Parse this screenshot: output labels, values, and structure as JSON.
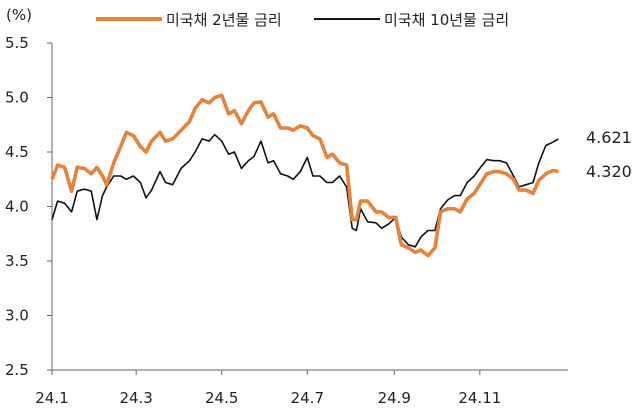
{
  "chart_data": {
    "type": "line",
    "unit_label": "(%)",
    "x_ticks": [
      "24.1",
      "24.3",
      "24.5",
      "24.7",
      "24.9",
      "24.11"
    ],
    "y_ticks": [
      "5.5",
      "5.0",
      "4.5",
      "4.0",
      "3.5",
      "3.0",
      "2.5"
    ],
    "ylim": [
      2.5,
      5.5
    ],
    "xlim": [
      "2024-01-01",
      "2024-12-31"
    ],
    "grid": false,
    "legend_position": "top",
    "series": [
      {
        "name": "미국채 2년물 금리",
        "color": "#e6823a",
        "end_label": "4.320",
        "points": [
          [
            "2024-01-01",
            4.25
          ],
          [
            "2024-01-05",
            4.38
          ],
          [
            "2024-01-10",
            4.36
          ],
          [
            "2024-01-15",
            4.14
          ],
          [
            "2024-01-19",
            4.36
          ],
          [
            "2024-01-24",
            4.35
          ],
          [
            "2024-01-29",
            4.3
          ],
          [
            "2024-02-02",
            4.36
          ],
          [
            "2024-02-06",
            4.28
          ],
          [
            "2024-02-09",
            4.2
          ],
          [
            "2024-02-14",
            4.4
          ],
          [
            "2024-02-19",
            4.55
          ],
          [
            "2024-02-23",
            4.68
          ],
          [
            "2024-02-28",
            4.65
          ],
          [
            "2024-03-04",
            4.55
          ],
          [
            "2024-03-08",
            4.5
          ],
          [
            "2024-03-12",
            4.6
          ],
          [
            "2024-03-18",
            4.68
          ],
          [
            "2024-03-22",
            4.6
          ],
          [
            "2024-03-27",
            4.62
          ],
          [
            "2024-04-02",
            4.7
          ],
          [
            "2024-04-08",
            4.78
          ],
          [
            "2024-04-12",
            4.9
          ],
          [
            "2024-04-17",
            4.98
          ],
          [
            "2024-04-22",
            4.95
          ],
          [
            "2024-04-26",
            5.0
          ],
          [
            "2024-05-01",
            5.02
          ],
          [
            "2024-05-06",
            4.85
          ],
          [
            "2024-05-10",
            4.88
          ],
          [
            "2024-05-15",
            4.76
          ],
          [
            "2024-05-20",
            4.88
          ],
          [
            "2024-05-24",
            4.95
          ],
          [
            "2024-05-29",
            4.96
          ],
          [
            "2024-06-03",
            4.82
          ],
          [
            "2024-06-07",
            4.85
          ],
          [
            "2024-06-12",
            4.72
          ],
          [
            "2024-06-17",
            4.72
          ],
          [
            "2024-06-21",
            4.7
          ],
          [
            "2024-06-26",
            4.74
          ],
          [
            "2024-07-01",
            4.72
          ],
          [
            "2024-07-05",
            4.65
          ],
          [
            "2024-07-10",
            4.62
          ],
          [
            "2024-07-15",
            4.45
          ],
          [
            "2024-07-19",
            4.48
          ],
          [
            "2024-07-24",
            4.4
          ],
          [
            "2024-07-29",
            4.38
          ],
          [
            "2024-08-02",
            3.88
          ],
          [
            "2024-08-05",
            3.88
          ],
          [
            "2024-08-08",
            4.05
          ],
          [
            "2024-08-13",
            4.05
          ],
          [
            "2024-08-19",
            3.95
          ],
          [
            "2024-08-23",
            3.95
          ],
          [
            "2024-08-28",
            3.9
          ],
          [
            "2024-09-02",
            3.9
          ],
          [
            "2024-09-06",
            3.65
          ],
          [
            "2024-09-11",
            3.62
          ],
          [
            "2024-09-16",
            3.58
          ],
          [
            "2024-09-20",
            3.6
          ],
          [
            "2024-09-25",
            3.55
          ],
          [
            "2024-09-30",
            3.62
          ],
          [
            "2024-10-04",
            3.95
          ],
          [
            "2024-10-09",
            3.98
          ],
          [
            "2024-10-14",
            3.98
          ],
          [
            "2024-10-18",
            3.95
          ],
          [
            "2024-10-23",
            4.07
          ],
          [
            "2024-10-28",
            4.12
          ],
          [
            "2024-11-01",
            4.2
          ],
          [
            "2024-11-06",
            4.3
          ],
          [
            "2024-11-11",
            4.32
          ],
          [
            "2024-11-15",
            4.32
          ],
          [
            "2024-11-20",
            4.3
          ],
          [
            "2024-11-25",
            4.25
          ],
          [
            "2024-11-29",
            4.15
          ],
          [
            "2024-12-04",
            4.15
          ],
          [
            "2024-12-09",
            4.12
          ],
          [
            "2024-12-13",
            4.24
          ],
          [
            "2024-12-18",
            4.3
          ],
          [
            "2024-12-23",
            4.33
          ],
          [
            "2024-12-27",
            4.32
          ]
        ]
      },
      {
        "name": "미국채 10년물 금리",
        "color": "#111111",
        "end_label": "4.621",
        "points": [
          [
            "2024-01-01",
            3.88
          ],
          [
            "2024-01-05",
            4.05
          ],
          [
            "2024-01-10",
            4.03
          ],
          [
            "2024-01-15",
            3.95
          ],
          [
            "2024-01-19",
            4.14
          ],
          [
            "2024-01-24",
            4.16
          ],
          [
            "2024-01-29",
            4.14
          ],
          [
            "2024-02-02",
            3.88
          ],
          [
            "2024-02-06",
            4.1
          ],
          [
            "2024-02-09",
            4.18
          ],
          [
            "2024-02-14",
            4.28
          ],
          [
            "2024-02-19",
            4.28
          ],
          [
            "2024-02-23",
            4.25
          ],
          [
            "2024-02-28",
            4.28
          ],
          [
            "2024-03-04",
            4.22
          ],
          [
            "2024-03-08",
            4.08
          ],
          [
            "2024-03-12",
            4.15
          ],
          [
            "2024-03-18",
            4.32
          ],
          [
            "2024-03-22",
            4.22
          ],
          [
            "2024-03-27",
            4.2
          ],
          [
            "2024-04-02",
            4.35
          ],
          [
            "2024-04-08",
            4.42
          ],
          [
            "2024-04-12",
            4.5
          ],
          [
            "2024-04-17",
            4.62
          ],
          [
            "2024-04-22",
            4.6
          ],
          [
            "2024-04-26",
            4.66
          ],
          [
            "2024-05-01",
            4.6
          ],
          [
            "2024-05-06",
            4.48
          ],
          [
            "2024-05-10",
            4.5
          ],
          [
            "2024-05-15",
            4.35
          ],
          [
            "2024-05-20",
            4.42
          ],
          [
            "2024-05-24",
            4.46
          ],
          [
            "2024-05-29",
            4.6
          ],
          [
            "2024-06-03",
            4.4
          ],
          [
            "2024-06-07",
            4.42
          ],
          [
            "2024-06-12",
            4.3
          ],
          [
            "2024-06-17",
            4.28
          ],
          [
            "2024-06-21",
            4.25
          ],
          [
            "2024-06-26",
            4.32
          ],
          [
            "2024-07-01",
            4.45
          ],
          [
            "2024-07-05",
            4.28
          ],
          [
            "2024-07-10",
            4.28
          ],
          [
            "2024-07-15",
            4.22
          ],
          [
            "2024-07-19",
            4.22
          ],
          [
            "2024-07-24",
            4.28
          ],
          [
            "2024-07-29",
            4.18
          ],
          [
            "2024-08-02",
            3.8
          ],
          [
            "2024-08-05",
            3.78
          ],
          [
            "2024-08-08",
            3.98
          ],
          [
            "2024-08-13",
            3.86
          ],
          [
            "2024-08-19",
            3.85
          ],
          [
            "2024-08-23",
            3.8
          ],
          [
            "2024-08-28",
            3.84
          ],
          [
            "2024-09-02",
            3.9
          ],
          [
            "2024-09-06",
            3.72
          ],
          [
            "2024-09-11",
            3.65
          ],
          [
            "2024-09-16",
            3.63
          ],
          [
            "2024-09-20",
            3.72
          ],
          [
            "2024-09-25",
            3.78
          ],
          [
            "2024-09-30",
            3.78
          ],
          [
            "2024-10-04",
            3.98
          ],
          [
            "2024-10-09",
            4.06
          ],
          [
            "2024-10-14",
            4.1
          ],
          [
            "2024-10-18",
            4.1
          ],
          [
            "2024-10-23",
            4.22
          ],
          [
            "2024-10-28",
            4.28
          ],
          [
            "2024-11-01",
            4.35
          ],
          [
            "2024-11-06",
            4.43
          ],
          [
            "2024-11-11",
            4.42
          ],
          [
            "2024-11-15",
            4.42
          ],
          [
            "2024-11-20",
            4.4
          ],
          [
            "2024-11-25",
            4.28
          ],
          [
            "2024-11-29",
            4.18
          ],
          [
            "2024-12-04",
            4.2
          ],
          [
            "2024-12-09",
            4.22
          ],
          [
            "2024-12-13",
            4.4
          ],
          [
            "2024-12-18",
            4.56
          ],
          [
            "2024-12-23",
            4.59
          ],
          [
            "2024-12-27",
            4.62
          ]
        ]
      }
    ]
  }
}
